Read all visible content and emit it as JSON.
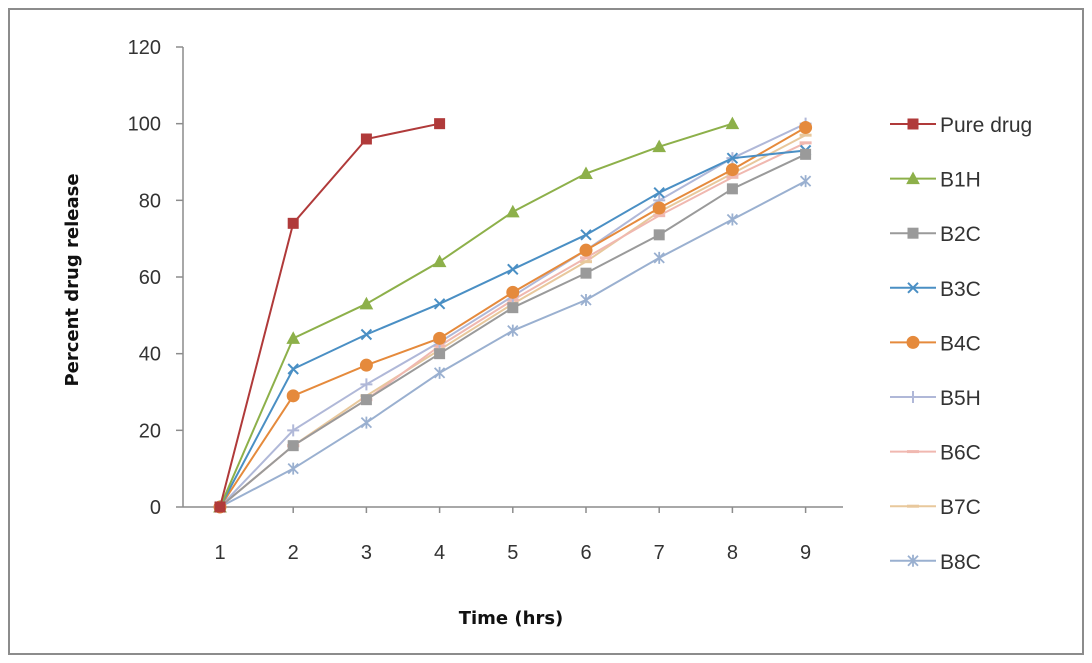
{
  "chart_data": {
    "type": "line",
    "title": "",
    "xlabel": "Time (hrs)",
    "ylabel": "Percent drug release",
    "categories": [
      "1",
      "2",
      "3",
      "4",
      "5",
      "6",
      "7",
      "8",
      "9"
    ],
    "ylim": [
      0,
      120
    ],
    "yticks": [
      0,
      20,
      40,
      60,
      80,
      100,
      120
    ],
    "grid": false,
    "legend_position": "right",
    "series": [
      {
        "name": "Pure drug",
        "color": "#b03a3a",
        "marker": "square",
        "values": [
          0,
          74,
          96,
          100,
          null,
          null,
          null,
          null,
          null
        ]
      },
      {
        "name": "B1H",
        "color": "#8db04a",
        "marker": "triangle",
        "values": [
          0,
          44,
          53,
          64,
          77,
          87,
          94,
          100,
          null
        ]
      },
      {
        "name": "B2C",
        "color": "#9a9a9a",
        "marker": "square",
        "values": [
          0,
          16,
          28,
          40,
          52,
          61,
          71,
          83,
          92
        ]
      },
      {
        "name": "B3C",
        "color": "#4a8fc4",
        "marker": "x",
        "values": [
          0,
          36,
          45,
          53,
          62,
          71,
          82,
          91,
          93
        ]
      },
      {
        "name": "B4C",
        "color": "#e58a3c",
        "marker": "circle",
        "values": [
          0,
          29,
          37,
          44,
          56,
          67,
          78,
          88,
          99
        ]
      },
      {
        "name": "B5H",
        "color": "#b0b8d8",
        "marker": "plus",
        "values": [
          0,
          20,
          32,
          43,
          55,
          67,
          80,
          91,
          100
        ]
      },
      {
        "name": "B6C",
        "color": "#f0b8b0",
        "marker": "dash",
        "values": [
          0,
          16,
          28,
          42,
          54,
          65,
          76,
          86,
          95
        ]
      },
      {
        "name": "B7C",
        "color": "#e8c89c",
        "marker": "dash",
        "values": [
          0,
          16,
          29,
          41,
          53,
          64,
          77,
          87,
          97
        ]
      },
      {
        "name": "B8C",
        "color": "#9ab0d0",
        "marker": "star",
        "values": [
          0,
          10,
          22,
          35,
          46,
          54,
          65,
          75,
          85
        ]
      }
    ]
  }
}
